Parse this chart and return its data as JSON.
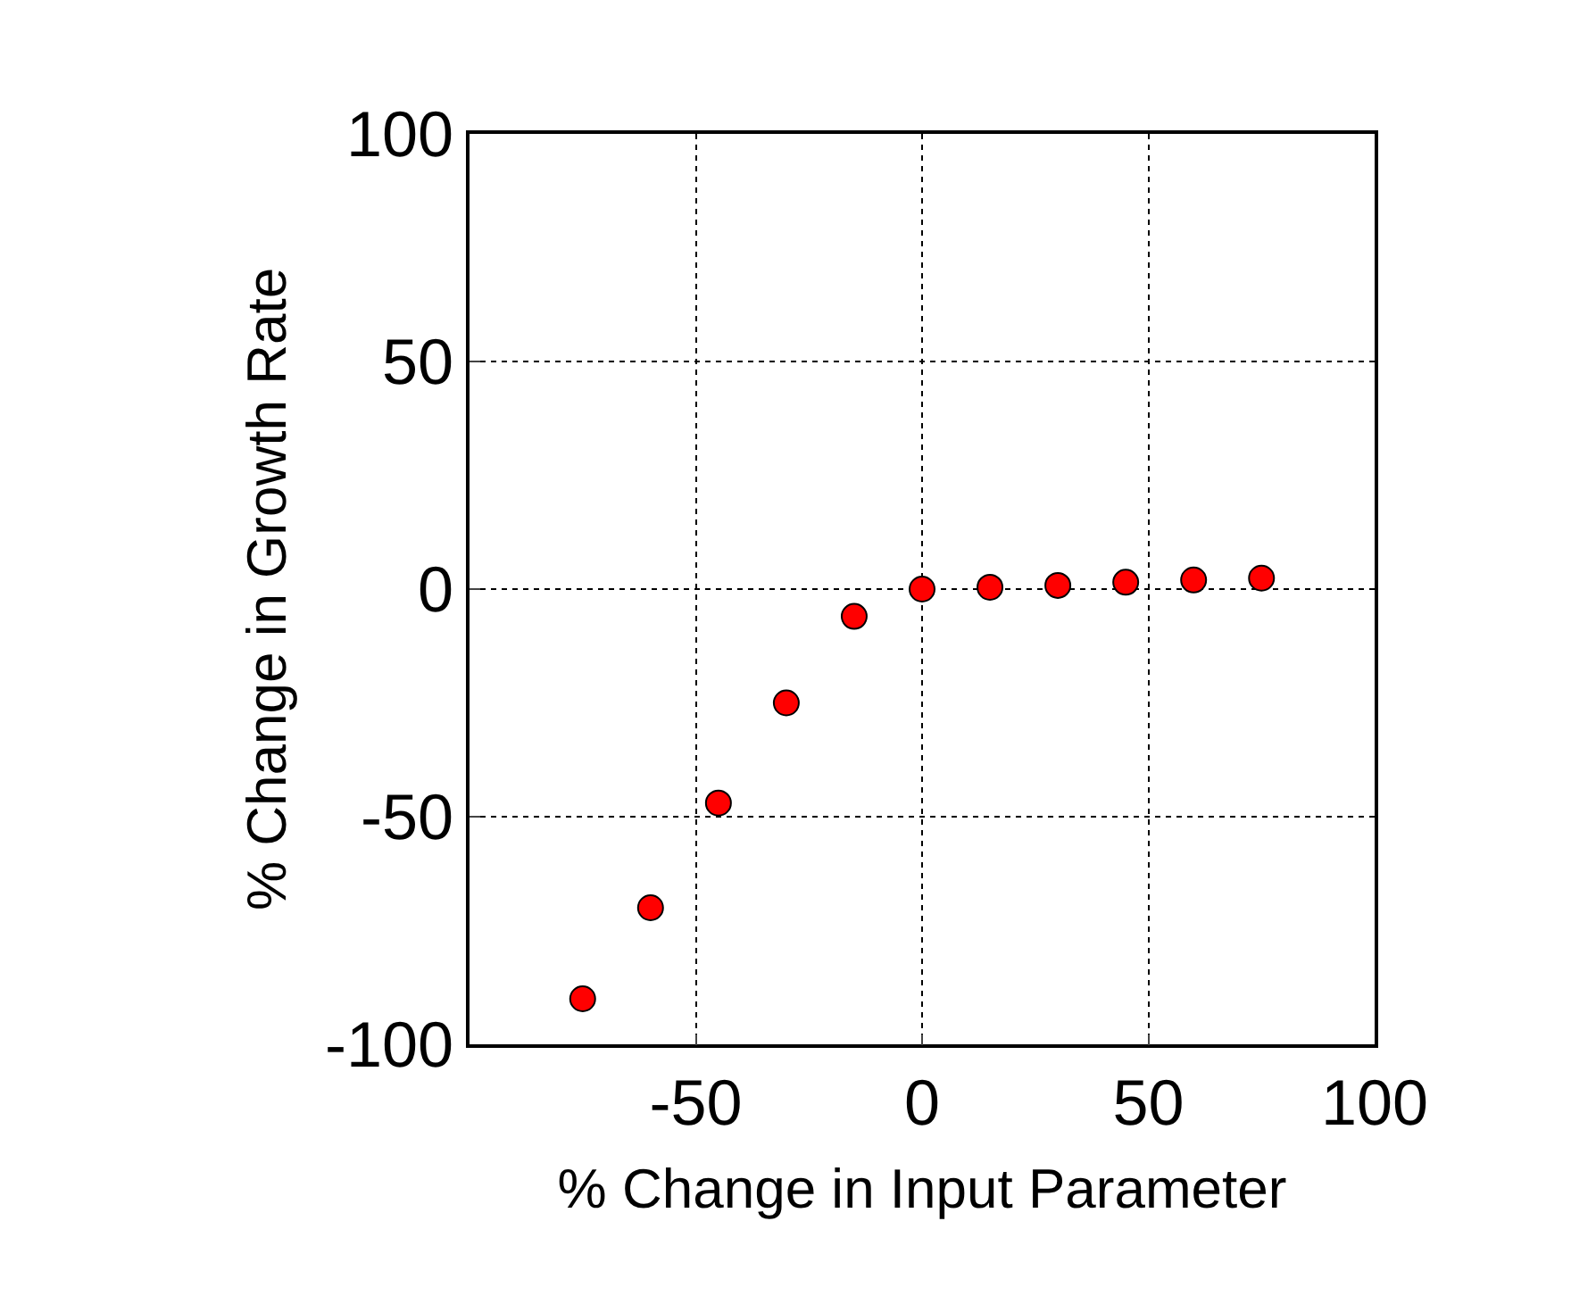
{
  "chart_data": {
    "type": "scatter",
    "xlabel": "% Change in Input Parameter",
    "ylabel": "% Change in Growth Rate",
    "x": [
      -75,
      -60,
      -45,
      -30,
      -15,
      0,
      15,
      30,
      45,
      60,
      75
    ],
    "series": [
      {
        "color": "#ff0000",
        "values": [
          -90,
          -70,
          -47,
          -25,
          -6,
          0,
          0.4,
          0.8,
          1.5,
          2,
          2.4
        ]
      }
    ],
    "xlim": [
      -100,
      100
    ],
    "xticks": [
      {
        "value": -100,
        "label": null
      },
      -50,
      0,
      50,
      100
    ],
    "ylim": [
      -100,
      100
    ],
    "yticks": [
      -100,
      -50,
      0,
      50,
      100
    ],
    "grid": true,
    "marker": "circle"
  }
}
